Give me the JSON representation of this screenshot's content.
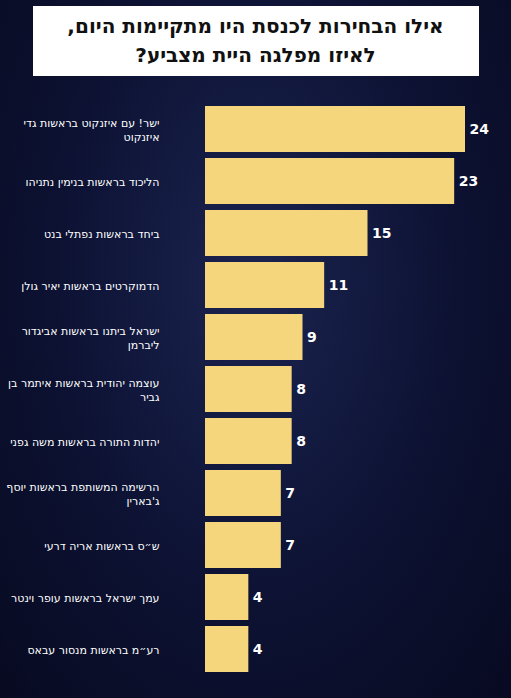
{
  "chart_data": {
    "type": "bar",
    "title": "אילו הבחירות לכנסת היו מתקיימות היום,\nלאיזו מפלגה היית מצביע?",
    "orientation": "horizontal",
    "categories": [
      "ישר! עם איזנקוט בראשות גדי\nאיזנקוט",
      "הליכוד בראשות בנימין נתניהו",
      "ביחד בראשות נפתלי בנט",
      "הדמוקרטים בראשות יאיר גולן",
      "ישראל ביתנו בראשות אביגדור\nליברמן",
      "עוצמה יהודית בראשות איתמר בן\nגביר",
      "יהדות התורה בראשות משה גפני",
      "הרשימה המשותפת בראשות יוסף\nג'בארין",
      "ש״ס בראשות אריה דרעי",
      "עמך ישראל בראשות עופר וינטר",
      "רע״מ בראשות מנסור עבאס"
    ],
    "values": [
      24,
      23,
      15,
      11,
      9,
      8,
      8,
      7,
      7,
      4,
      4
    ],
    "color": "#f6d67c",
    "xlim": [
      0,
      24
    ],
    "xticks": [],
    "data_labels": true,
    "tick_labels": false,
    "grid": false
  }
}
